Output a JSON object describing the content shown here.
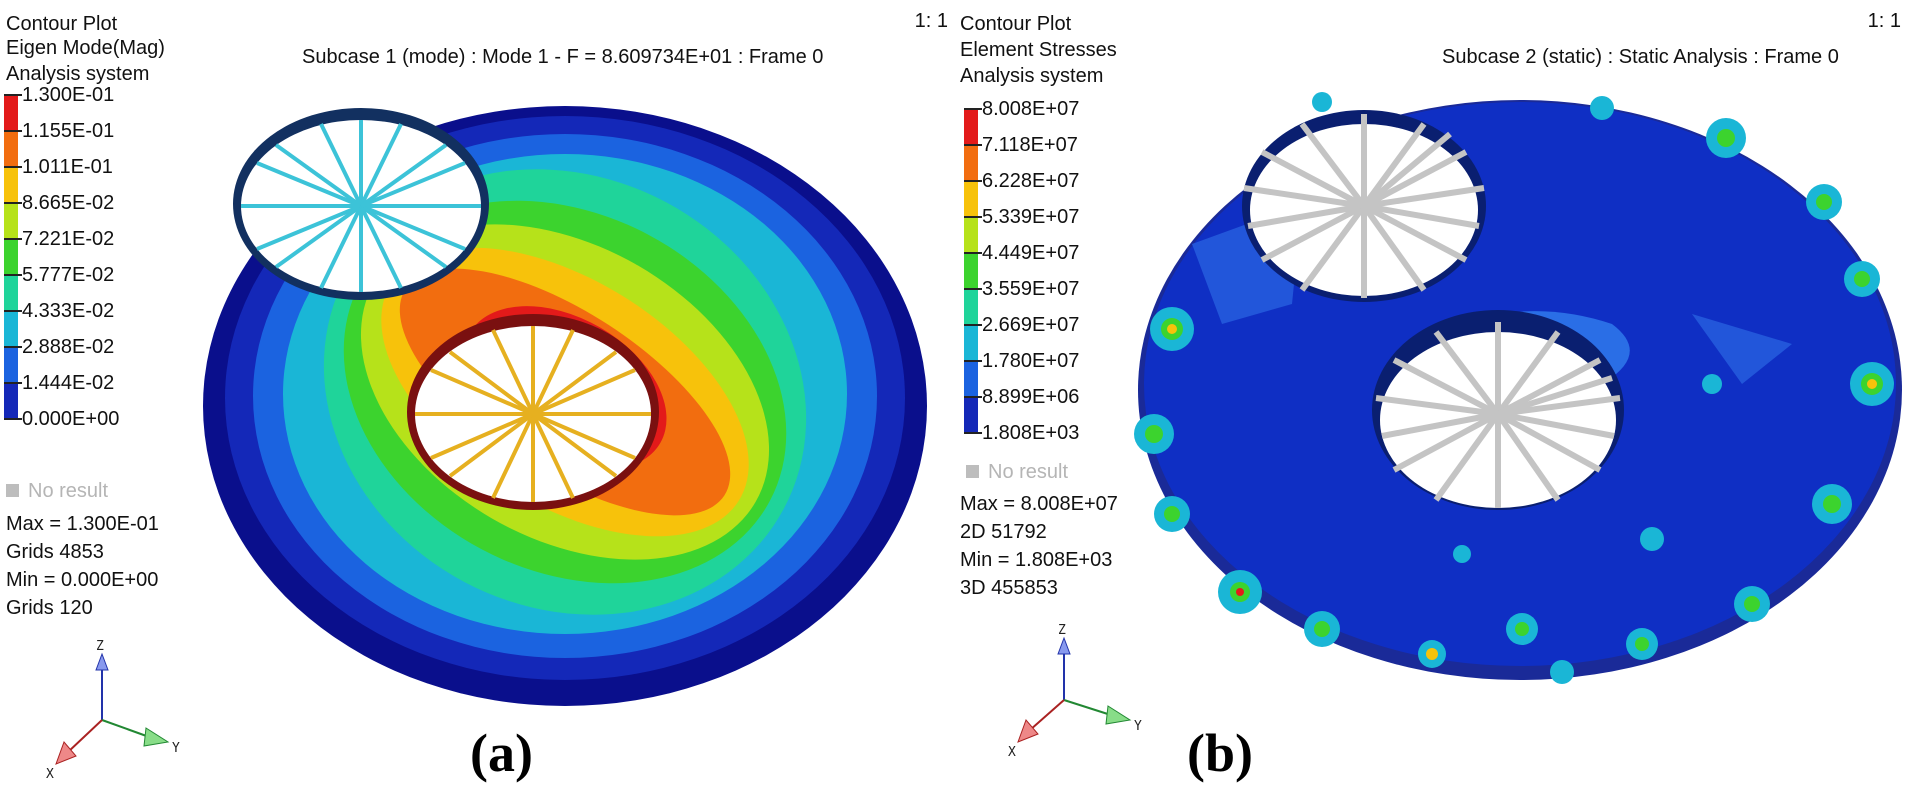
{
  "panels": [
    {
      "caption": "(a)",
      "scale": "1: 1",
      "subtitle": "Subcase 1 (mode) : Mode 1 - F = 8.609734E+01 : Frame 0",
      "header": [
        "Contour Plot",
        "Eigen Mode(Mag)",
        "Analysis system"
      ],
      "legend": {
        "ticks": [
          "1.300E-01",
          "1.155E-01",
          "1.011E-01",
          "8.665E-02",
          "7.221E-02",
          "5.777E-02",
          "4.333E-02",
          "2.888E-02",
          "1.444E-02",
          "0.000E+00"
        ],
        "colors": [
          "#e31a1a",
          "#f26d0f",
          "#f7c20b",
          "#b6e21a",
          "#3cd32e",
          "#1fd49a",
          "#1ab6d6",
          "#1b63e0",
          "#1428b8",
          "#0a0f8c"
        ],
        "no_result": "No result"
      },
      "stats": [
        "Max = 1.300E-01",
        "Grids 4853",
        "Min = 0.000E+00",
        "Grids 120"
      ]
    },
    {
      "caption": "(b)",
      "scale": "1: 1",
      "subtitle": "Subcase 2 (static) : Static Analysis : Frame 0",
      "header": [
        "Contour Plot",
        "Element Stresses",
        "Analysis system"
      ],
      "legend": {
        "ticks": [
          "8.008E+07",
          "7.118E+07",
          "6.228E+07",
          "5.339E+07",
          "4.449E+07",
          "3.559E+07",
          "2.669E+07",
          "1.780E+07",
          "8.899E+06",
          "1.808E+03"
        ],
        "colors": [
          "#e31a1a",
          "#f26d0f",
          "#f7c20b",
          "#b6e21a",
          "#3cd32e",
          "#1fd49a",
          "#1ab6d6",
          "#1b63e0",
          "#1428b8",
          "#0a0f8c"
        ],
        "no_result": "No result"
      },
      "stats": [
        "Max = 8.008E+07",
        "2D 51792",
        "Min = 1.808E+03",
        "3D 455853"
      ]
    }
  ],
  "axis_triad": {
    "x": "X",
    "y": "Y",
    "z": "Z"
  }
}
